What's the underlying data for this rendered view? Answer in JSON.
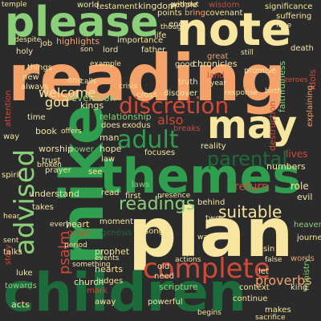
{
  "palette": {
    "background": "#2b2b2b",
    "green_light": "#8ccf7a",
    "green_mid": "#2f9e4f",
    "green_dark": "#1d6b3a",
    "orange": "#f4a26a",
    "orange_light": "#f7b27a",
    "yellow": "#f7e5a0",
    "red": "#d04a3a",
    "red_dark": "#a3322a"
  },
  "words": {
    "reading": "reading",
    "please": "please",
    "note": "note",
    "mike": "mike",
    "plan": "plan",
    "children": "children",
    "themes": "themes",
    "may": "may",
    "discretion": "discretion",
    "complete": "complete",
    "adult": "adult",
    "parental": "parental",
    "readings": "readings",
    "advised": "advised",
    "suitable": "suitable",
    "welcome": "welcome",
    "god": "god",
    "proverbs": "proverbs",
    "psalm": "psalm",
    "return": "return",
    "highlights": "highlights",
    "holy": "holy",
    "attention": "attention",
    "revelation": "revelation",
    "relationship": "relationship",
    "worship": "worship",
    "also": "also",
    "kingdom": "kingdom",
    "world": "world",
    "temple": "temple",
    "bring": "bring",
    "covenant": "covenant",
    "significance": "significance",
    "suffering": "suffering",
    "points": "points",
    "people": "people",
    "wisdom": "wisdom",
    "life": "life",
    "father": "father",
    "chronicles": "chronicles",
    "death": "death",
    "promise": "promise",
    "faithfulness": "faithfulness",
    "jesus": "jesus",
    "idols": "idols",
    "kings": "kings",
    "book": "book",
    "exodus": "exodus",
    "does": "does",
    "breaks": "breaks",
    "reality": "reality",
    "numbers": "numbers",
    "role": "role",
    "evil": "evil",
    "heaven": "heaven",
    "journey": "journey",
    "ministry": "ministry",
    "church": "church",
    "mark": "mark",
    "judges": "judges",
    "scripture": "scripture",
    "context": "context",
    "continue": "continue",
    "makes": "makes",
    "sacrifice": "sacrifice",
    "king": "king",
    "acts": "acts",
    "luke": "luke",
    "prophet": "prophet",
    "hearts": "hearts",
    "heart": "heart",
    "gospel": "gospel",
    "genesis": "genesis",
    "song": "song",
    "moment": "moment",
    "first": "first",
    "understand": "understand",
    "spirit": "spirit",
    "trust": "trust",
    "prayer": "prayer",
    "broken": "broken",
    "man": "man",
    "hope": "hope",
    "power": "power",
    "focuses": "focuses",
    "destruction": "destruction",
    "lives": "lives",
    "laws": "laws",
    "law": "law",
    "lord": "lord",
    "land": "land",
    "truth": "truth",
    "crisis": "crisis",
    "example": "example",
    "since": "since",
    "calls": "calls",
    "one": "one",
    "things": "things",
    "always": "always",
    "new": "new",
    "time": "time",
    "way": "way",
    "see": "see",
    "read": "read",
    "two": "two",
    "wants": "wants",
    "sin": "sin",
    "false": "false",
    "words": "words",
    "let": "let",
    "away": "away",
    "powerful": "powerful",
    "need": "need",
    "begins": "begins",
    "sent": "sent",
    "talks": "talks",
    "towards": "towards",
    "important": "important",
    "something": "something",
    "job": "job",
    "despite": "despite",
    "testament": "testament",
    "end": "end",
    "though": "though",
    "face": "face",
    "good": "good",
    "great": "great",
    "year": "year",
    "discover": "discover",
    "response": "response",
    "explaining": "explaining",
    "zeroes": "zeroes",
    "presence": "presence",
    "behind": "behind",
    "takes": "takes",
    "period": "period",
    "events": "events",
    "actions": "actions",
    "old": "old",
    "birth": "birth",
    "story": "story",
    "hear": "hear",
    "offers": "offers",
    "every": "every",
    "without": "without",
    "cross": "cross",
    "still": "still",
    "importance": "importance",
    "introduces": "introduces",
    "whole": "whole",
    "son": "son",
    "far": "far"
  }
}
